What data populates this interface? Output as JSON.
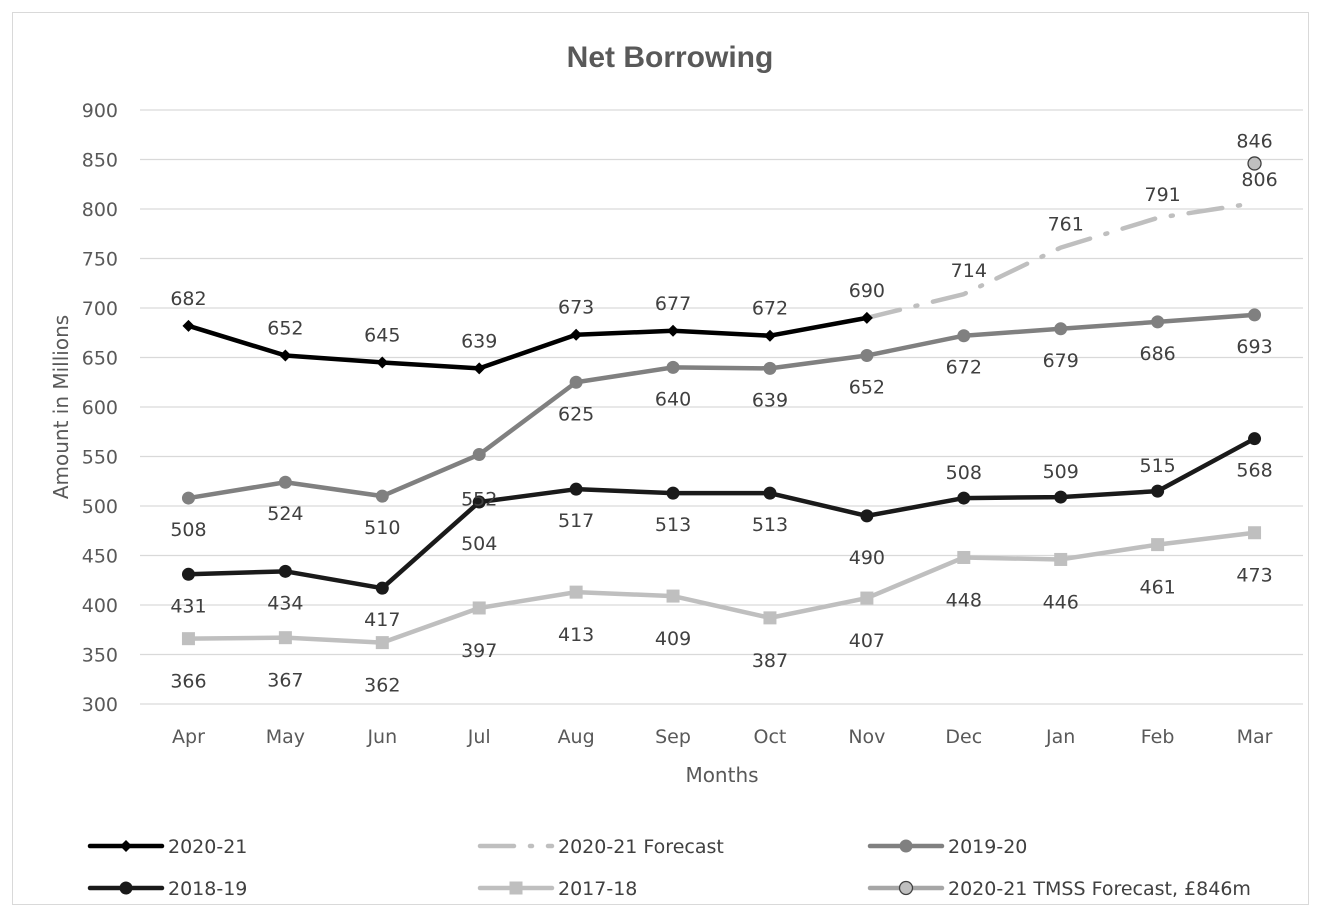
{
  "chart_data": {
    "type": "line",
    "title": "Net Borrowing",
    "xlabel": "Months",
    "ylabel": "Amount in  Millions",
    "ylim": [
      300,
      900
    ],
    "yticks": [
      300,
      350,
      400,
      450,
      500,
      550,
      600,
      650,
      700,
      750,
      800,
      850,
      900
    ],
    "grid": true,
    "legend_position": "bottom",
    "categories": [
      "Apr",
      "May",
      "Jun",
      "Jul",
      "Aug",
      "Sep",
      "Oct",
      "Nov",
      "Dec",
      "Jan",
      "Feb",
      "Mar"
    ],
    "series": [
      {
        "name": "2020-21",
        "color": "#000000",
        "marker": "diamond",
        "style": "solid",
        "values": [
          682,
          652,
          645,
          639,
          673,
          677,
          672,
          690,
          null,
          null,
          null,
          null
        ]
      },
      {
        "name": "2020-21 Forecast",
        "color": "#bfbfbf",
        "marker": "none",
        "style": "dash-dot",
        "values": [
          null,
          null,
          null,
          null,
          null,
          null,
          null,
          690,
          714,
          761,
          791,
          806
        ]
      },
      {
        "name": "2019-20",
        "color": "#808080",
        "marker": "circle",
        "style": "solid",
        "values": [
          508,
          524,
          510,
          552,
          625,
          640,
          639,
          652,
          672,
          679,
          686,
          693
        ]
      },
      {
        "name": "2018-19",
        "color": "#1a1a1a",
        "marker": "circle",
        "style": "solid",
        "values": [
          431,
          434,
          417,
          504,
          517,
          513,
          513,
          490,
          508,
          509,
          515,
          568
        ]
      },
      {
        "name": "2017-18",
        "color": "#bfbfbf",
        "marker": "square",
        "style": "solid",
        "values": [
          366,
          367,
          362,
          397,
          413,
          409,
          387,
          407,
          448,
          446,
          461,
          473
        ]
      },
      {
        "name": "2020-21 TMSS Forecast, £846m",
        "color": "#a6a6a6",
        "marker": "circle-outline",
        "style": "point",
        "values": [
          null,
          null,
          null,
          null,
          null,
          null,
          null,
          null,
          null,
          null,
          null,
          846
        ]
      }
    ]
  }
}
